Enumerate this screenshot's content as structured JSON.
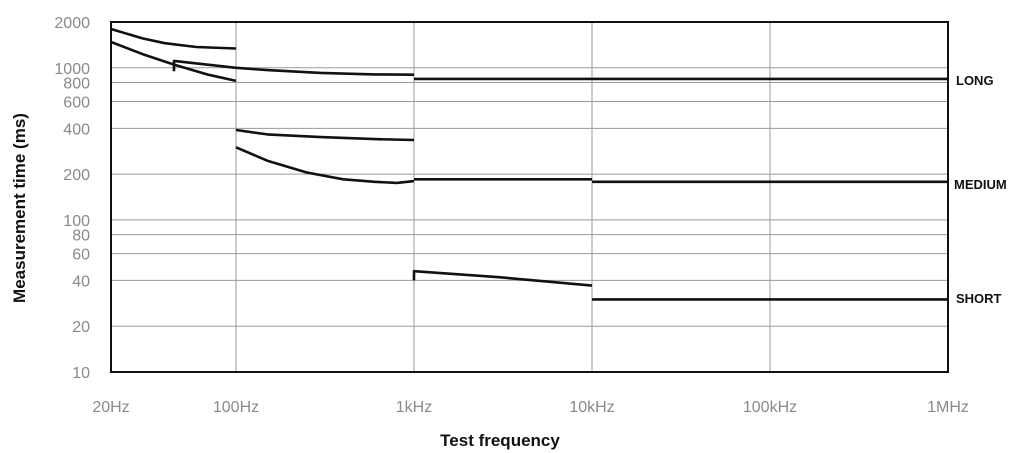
{
  "chart_data": {
    "type": "line",
    "title": "",
    "xlabel": "Test frequency",
    "ylabel": "Measurement time (ms)",
    "x_scale": "log",
    "y_scale": "log",
    "xlim": [
      "20Hz",
      "1MHz"
    ],
    "ylim": [
      10,
      2000
    ],
    "grid": true,
    "x_ticks": [
      {
        "value": 20,
        "label": "20Hz"
      },
      {
        "value": 100,
        "label": "100Hz"
      },
      {
        "value": 1000,
        "label": "1kHz"
      },
      {
        "value": 10000,
        "label": "10kHz"
      },
      {
        "value": 100000,
        "label": "100kHz"
      },
      {
        "value": 1000000,
        "label": "1MHz"
      }
    ],
    "y_ticks": [
      {
        "value": 2000,
        "label": "2000"
      },
      {
        "value": 1000,
        "label": "1000"
      },
      {
        "value": 800,
        "label": "800"
      },
      {
        "value": 600,
        "label": "600"
      },
      {
        "value": 400,
        "label": "400"
      },
      {
        "value": 200,
        "label": "200"
      },
      {
        "value": 100,
        "label": "100"
      },
      {
        "value": 80,
        "label": "80"
      },
      {
        "value": 60,
        "label": "60"
      },
      {
        "value": 40,
        "label": "40"
      },
      {
        "value": 20,
        "label": "20"
      },
      {
        "value": 10,
        "label": "10"
      }
    ],
    "series_labels": [
      "LONG",
      "MEDIUM",
      "SHORT"
    ],
    "curves": [
      {
        "id": "long-upper-low-freq",
        "points": [
          [
            20,
            1800
          ],
          [
            30,
            1560
          ],
          [
            40,
            1450
          ],
          [
            60,
            1370
          ],
          [
            100,
            1340
          ]
        ]
      },
      {
        "id": "long-lower-low-freq",
        "points": [
          [
            20,
            1480
          ],
          [
            30,
            1230
          ],
          [
            45,
            1050
          ],
          [
            70,
            900
          ],
          [
            100,
            820
          ]
        ]
      },
      {
        "id": "long-mid-low-freq",
        "points": [
          [
            45,
            950
          ],
          [
            45,
            1110
          ],
          [
            100,
            1000
          ],
          [
            150,
            965
          ],
          [
            300,
            925
          ],
          [
            600,
            905
          ],
          [
            1000,
            900
          ]
        ]
      },
      {
        "id": "long-flat",
        "points": [
          [
            1000,
            845
          ],
          [
            1000000,
            845
          ]
        ]
      },
      {
        "id": "medium-upper-100hz-1khz",
        "points": [
          [
            100,
            390
          ],
          [
            150,
            365
          ],
          [
            300,
            350
          ],
          [
            600,
            340
          ],
          [
            1000,
            335
          ]
        ]
      },
      {
        "id": "medium-lower-100hz-1khz",
        "points": [
          [
            100,
            300
          ],
          [
            150,
            245
          ],
          [
            250,
            205
          ],
          [
            400,
            185
          ],
          [
            600,
            178
          ],
          [
            800,
            175
          ],
          [
            1000,
            180
          ]
        ]
      },
      {
        "id": "medium-1khz-10khz",
        "points": [
          [
            1000,
            185
          ],
          [
            10000,
            185
          ]
        ]
      },
      {
        "id": "medium-flat",
        "points": [
          [
            10000,
            178
          ],
          [
            1000000,
            178
          ]
        ]
      },
      {
        "id": "short-1khz-10khz",
        "points": [
          [
            1000,
            40
          ],
          [
            1000,
            46
          ],
          [
            3000,
            42
          ],
          [
            10000,
            37
          ]
        ]
      },
      {
        "id": "short-flat",
        "points": [
          [
            10000,
            30
          ],
          [
            1000000,
            30
          ]
        ]
      }
    ]
  }
}
